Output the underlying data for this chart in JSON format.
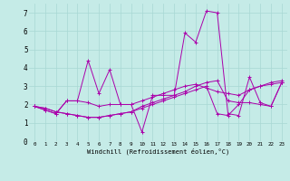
{
  "xlabel": "Windchill (Refroidissement éolien,°C)",
  "ylabel": "",
  "bg_color": "#c5ebe7",
  "grid_color": "#a8d8d4",
  "line_color": "#aa00aa",
  "xlim": [
    -0.5,
    23.5
  ],
  "ylim": [
    0,
    7.5
  ],
  "xticks": [
    0,
    1,
    2,
    3,
    4,
    5,
    6,
    7,
    8,
    9,
    10,
    11,
    12,
    13,
    14,
    15,
    16,
    17,
    18,
    19,
    20,
    21,
    22,
    23
  ],
  "yticks": [
    0,
    1,
    2,
    3,
    4,
    5,
    6,
    7
  ],
  "series": [
    [
      1.9,
      1.7,
      1.5,
      2.2,
      2.2,
      4.4,
      2.6,
      3.9,
      2.0,
      2.0,
      0.5,
      2.5,
      2.5,
      2.5,
      5.9,
      5.4,
      7.1,
      7.0,
      1.5,
      1.4,
      3.5,
      2.1,
      1.9,
      3.2
    ],
    [
      1.9,
      1.7,
      1.5,
      2.2,
      2.2,
      2.1,
      1.9,
      2.0,
      2.0,
      2.0,
      2.2,
      2.4,
      2.6,
      2.8,
      3.0,
      3.1,
      2.9,
      2.7,
      2.6,
      2.5,
      2.8,
      3.0,
      3.1,
      3.2
    ],
    [
      1.9,
      1.8,
      1.6,
      1.5,
      1.4,
      1.3,
      1.3,
      1.4,
      1.5,
      1.6,
      1.8,
      2.0,
      2.2,
      2.4,
      2.6,
      2.8,
      3.0,
      1.5,
      1.4,
      2.0,
      2.8,
      3.0,
      3.2,
      3.3
    ],
    [
      1.9,
      1.8,
      1.6,
      1.5,
      1.4,
      1.3,
      1.3,
      1.4,
      1.5,
      1.6,
      1.9,
      2.1,
      2.3,
      2.5,
      2.7,
      3.0,
      3.2,
      3.3,
      2.2,
      2.1,
      2.1,
      2.0,
      1.9,
      3.2
    ]
  ]
}
